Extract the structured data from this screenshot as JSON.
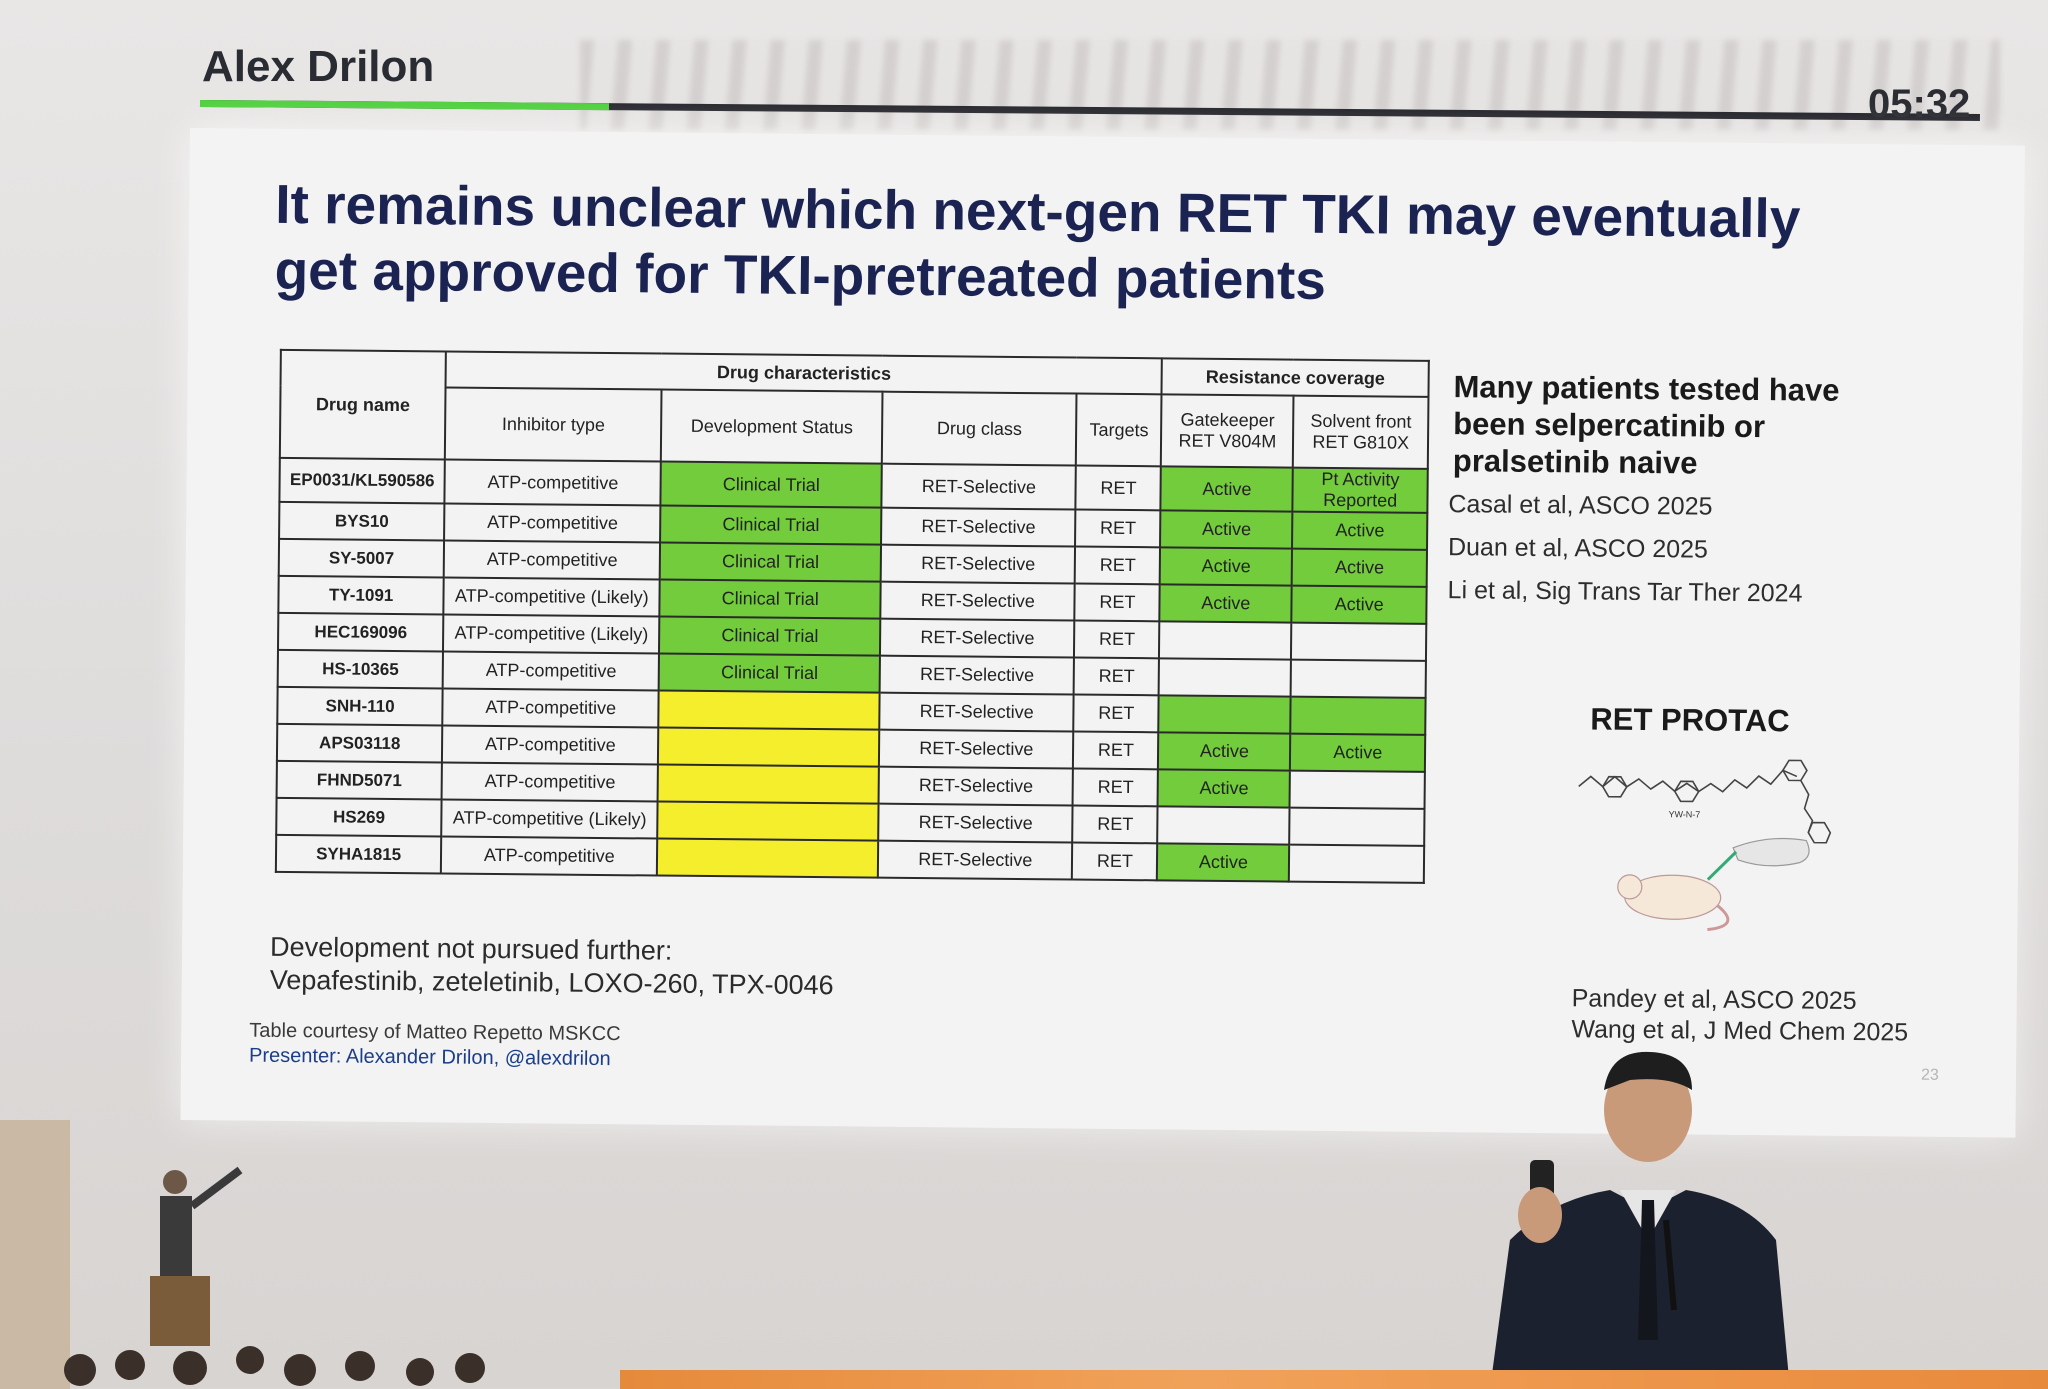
{
  "screen": {
    "presenter": "Alex Drilon",
    "timer": "05:32",
    "progress": 0.23
  },
  "slide": {
    "title": "It remains unclear which next-gen RET TKI may eventually get approved for TKI-pretreated patients",
    "table": {
      "group_headers": {
        "drug_name": "Drug name",
        "characteristics": "Drug characteristics",
        "resistance": "Resistance coverage"
      },
      "columns": {
        "inhibitor": "Inhibitor type",
        "status": "Development Status",
        "class": "Drug class",
        "targets": "Targets",
        "gatekeeper": "Gatekeeper RET V804M",
        "solvent": "Solvent front RET G810X"
      },
      "rows": [
        {
          "name": "EP0031/KL590586",
          "inhibitor": "ATP-competitive",
          "status": "Clinical Trial",
          "status_color": "green",
          "class": "RET-Selective",
          "targets": "RET",
          "gatekeeper": "Active",
          "gatekeeper_color": "green",
          "solvent": "Pt Activity Reported",
          "solvent_color": "green"
        },
        {
          "name": "BYS10",
          "inhibitor": "ATP-competitive",
          "status": "Clinical Trial",
          "status_color": "green",
          "class": "RET-Selective",
          "targets": "RET",
          "gatekeeper": "Active",
          "gatekeeper_color": "green",
          "solvent": "Active",
          "solvent_color": "green"
        },
        {
          "name": "SY-5007",
          "inhibitor": "ATP-competitive",
          "status": "Clinical Trial",
          "status_color": "green",
          "class": "RET-Selective",
          "targets": "RET",
          "gatekeeper": "Active",
          "gatekeeper_color": "green",
          "solvent": "Active",
          "solvent_color": "green"
        },
        {
          "name": "TY-1091",
          "inhibitor": "ATP-competitive (Likely)",
          "status": "Clinical Trial",
          "status_color": "green",
          "class": "RET-Selective",
          "targets": "RET",
          "gatekeeper": "Active",
          "gatekeeper_color": "green",
          "solvent": "Active",
          "solvent_color": "green"
        },
        {
          "name": "HEC169096",
          "inhibitor": "ATP-competitive (Likely)",
          "status": "Clinical Trial",
          "status_color": "green",
          "class": "RET-Selective",
          "targets": "RET",
          "gatekeeper": "",
          "gatekeeper_color": "none",
          "solvent": "",
          "solvent_color": "none"
        },
        {
          "name": "HS-10365",
          "inhibitor": "ATP-competitive",
          "status": "Clinical Trial",
          "status_color": "green",
          "class": "RET-Selective",
          "targets": "RET",
          "gatekeeper": "",
          "gatekeeper_color": "none",
          "solvent": "",
          "solvent_color": "none"
        },
        {
          "name": "SNH-110",
          "inhibitor": "ATP-competitive",
          "status": "",
          "status_color": "yellow",
          "class": "RET-Selective",
          "targets": "RET",
          "gatekeeper": "",
          "gatekeeper_color": "green",
          "solvent": "",
          "solvent_color": "green"
        },
        {
          "name": "APS03118",
          "inhibitor": "ATP-competitive",
          "status": "",
          "status_color": "yellow",
          "class": "RET-Selective",
          "targets": "RET",
          "gatekeeper": "Active",
          "gatekeeper_color": "green",
          "solvent": "Active",
          "solvent_color": "green"
        },
        {
          "name": "FHND5071",
          "inhibitor": "ATP-competitive",
          "status": "",
          "status_color": "yellow",
          "class": "RET-Selective",
          "targets": "RET",
          "gatekeeper": "Active",
          "gatekeeper_color": "green",
          "solvent": "",
          "solvent_color": "none"
        },
        {
          "name": "HS269",
          "inhibitor": "ATP-competitive (Likely)",
          "status": "",
          "status_color": "yellow",
          "class": "RET-Selective",
          "targets": "RET",
          "gatekeeper": "",
          "gatekeeper_color": "none",
          "solvent": "",
          "solvent_color": "none"
        },
        {
          "name": "SYHA1815",
          "inhibitor": "ATP-competitive",
          "status": "",
          "status_color": "yellow",
          "class": "RET-Selective",
          "targets": "RET",
          "gatekeeper": "Active",
          "gatekeeper_color": "green",
          "solvent": "",
          "solvent_color": "none"
        }
      ]
    },
    "side": {
      "heading": "Many patients tested have been selpercatinib or pralsetinib naive",
      "refs": [
        "Casal et al, ASCO 2025",
        "Duan et al, ASCO 2025",
        "Li et al, Sig Trans Tar Ther 2024"
      ],
      "protac_title": "RET PROTAC",
      "compound_label": "YW-N-7",
      "protac_refs": [
        "Pandey et al, ASCO 2025",
        "Wang et al, J Med Chem 2025"
      ]
    },
    "dev_note": {
      "line1": "Development not pursued further:",
      "line2": "Vepafestinib, zeteletinib, LOXO-260, TPX-0046"
    },
    "credit": {
      "line1": "Table courtesy of Matteo Repetto MSKCC",
      "line2": "Presenter: Alexander Drilon, @alexdrilon"
    },
    "slide_number": "23"
  },
  "colors": {
    "green": "#73cc3b",
    "yellow": "#f4ee2c",
    "title": "#1b2352",
    "progress": "#4ccf3a"
  }
}
